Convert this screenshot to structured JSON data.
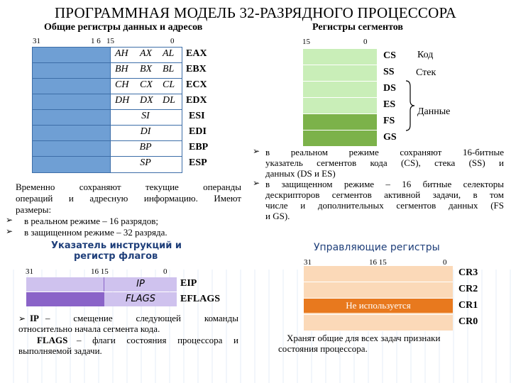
{
  "title": "ПРОГРАММНАЯ МОДЕЛЬ 32-РАЗРЯДНОГО ПРОЦЕССОРА",
  "general": {
    "heading": "Общие регистры данных и адресов",
    "bits": {
      "b31": "31",
      "b16": "1 6",
      "b15": "15",
      "b0": "0"
    },
    "registers": [
      {
        "parts": [
          "AH",
          "AX",
          "AL"
        ],
        "ename": "EAX"
      },
      {
        "parts": [
          "BH",
          "BX",
          "BL"
        ],
        "ename": "EBX"
      },
      {
        "parts": [
          "CH",
          "CX",
          "CL"
        ],
        "ename": "ECX"
      },
      {
        "parts": [
          "DH",
          "DX",
          "DL"
        ],
        "ename": "EDX"
      },
      {
        "parts": [
          "SI"
        ],
        "ename": "ESI"
      },
      {
        "parts": [
          "DI"
        ],
        "ename": "EDI"
      },
      {
        "parts": [
          "BP"
        ],
        "ename": "EBP"
      },
      {
        "parts": [
          "SP"
        ],
        "ename": "ESP"
      }
    ],
    "note_line1": "Временно сохраняют текущие операнды",
    "note_line2": "операций и адресную информацию. Имеют",
    "note_line3": "размеры:",
    "bullet1": "в реальном режиме – 16 разрядов;",
    "bullet2": "в защищенном режиме – 32 разряда."
  },
  "segments": {
    "heading": "Регистры сегментов",
    "bits": {
      "b15": "15",
      "b0": "0"
    },
    "names": [
      "CS",
      "SS",
      "DS",
      "ES",
      "FS",
      "GS"
    ],
    "code_label": "Код",
    "stack_label": "Стек",
    "data_label": "Данные",
    "bullet1_line1": "в реальном режиме сохраняют 16-битные",
    "bullet1_line2": "указатель сегментов кода (CS), стека (SS) и",
    "bullet1_line3": "данных (DS и ES)",
    "bullet2_line1": "в защищенном режиме – 16 битные селекторы",
    "bullet2_line2": "дескрипторов сегментов активной задачи, в том",
    "bullet2_line3": "числе и дополнительных сегментов данных (FS",
    "bullet2_line4": "и GS)."
  },
  "ip": {
    "heading_line1": "Указатель инструкций и",
    "heading_line2": "регистр флагов",
    "bits": {
      "b31": "31",
      "b16": "16 15",
      "b0": "0"
    },
    "ip_label": "IP",
    "flags_label": "FLAGS",
    "eip": "EIP",
    "eflags": "EFLAGS",
    "desc_ip_term": "IP",
    "desc_ip_line1": "– смещение следующей команды",
    "desc_ip_line2": "относительно начала сегмента кода.",
    "desc_flags_term": "FLAGS",
    "desc_flags_line1": "– флаги состояния процессора и",
    "desc_flags_line2": "выполняемой задачи."
  },
  "control": {
    "heading": "Управляющие регистры",
    "bits": {
      "b31": "31",
      "b16": "16 15",
      "b0": "0"
    },
    "names": [
      "CR3",
      "CR2",
      "CR1",
      "CR0"
    ],
    "unused_label": "Не используется",
    "desc_line1": "Хранят общие для всех задач признаки",
    "desc_line2": "состояния процессора."
  },
  "colors": {
    "gp_register": "#7aa8d8",
    "seg_light": "#c9eeb8",
    "seg_dark": "#7cb24a",
    "ip_light": "#cfc2ee",
    "ip_dark": "#8a63c8",
    "ctrl_light": "#fbd9b8",
    "ctrl_accent": "#e8791e",
    "heading_blue": "#1f3f7a"
  }
}
